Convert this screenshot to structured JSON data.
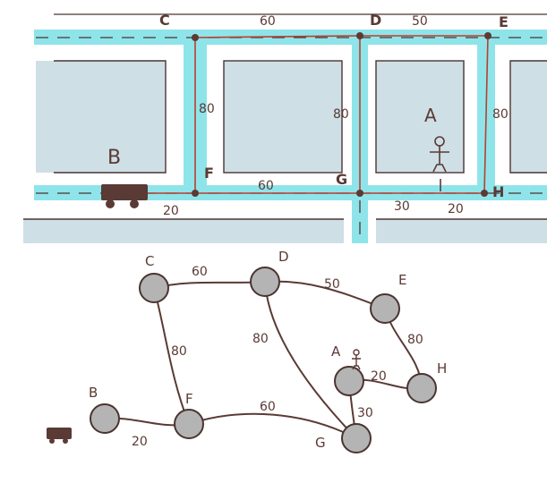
{
  "colors": {
    "road": "#8fe4ea",
    "block": "#cfdfe6",
    "route": "#b8402e",
    "ink": "#5a3a34",
    "node": "#b4b4b4",
    "nodeStroke": "#4a3431",
    "car": "#5a3a34"
  },
  "map": {
    "nodes": {
      "C": "C",
      "D": "D",
      "E": "E",
      "F": "F",
      "G": "G",
      "H": "H",
      "A": "A",
      "B": "B"
    },
    "weights": {
      "CD": "60",
      "DE": "50",
      "CF": "80",
      "DG": "80",
      "EH": "80",
      "FG": "60",
      "BF": "20",
      "GA": "30",
      "AH": "20"
    }
  },
  "graph": {
    "nodes": {
      "C": "C",
      "D": "D",
      "E": "E",
      "F": "F",
      "G": "G",
      "H": "H",
      "A": "A",
      "B": "B"
    },
    "weights": {
      "CD": "60",
      "DE": "50",
      "CF": "80",
      "DG": "80",
      "EH": "80",
      "FG": "60",
      "BF": "20",
      "GA": "30",
      "AH": "20"
    }
  }
}
